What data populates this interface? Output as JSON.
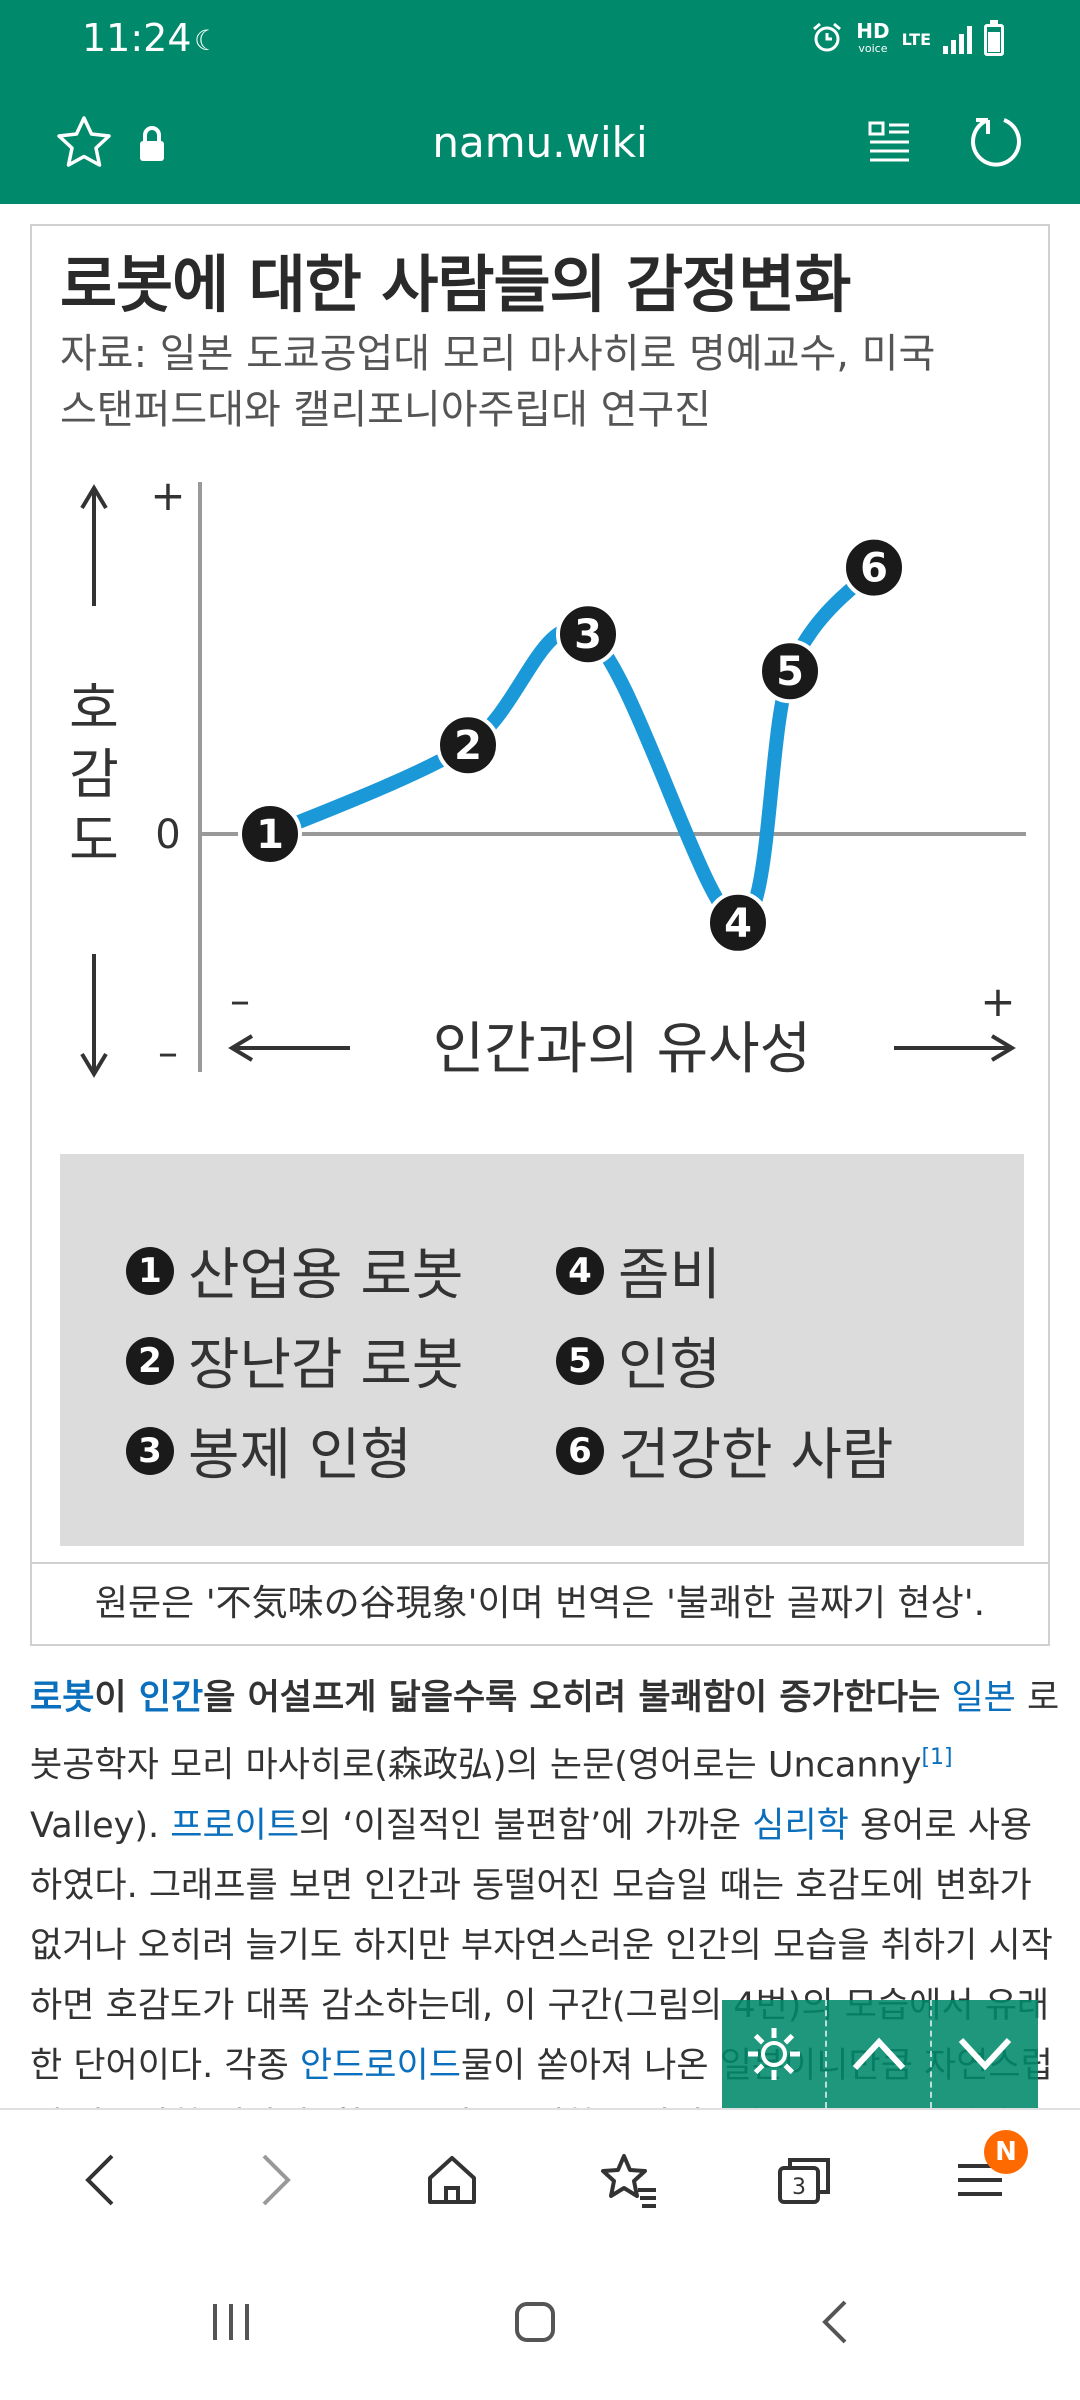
{
  "status_bar": {
    "time": "11:24",
    "hd_label": "HD",
    "voice_label": "voice",
    "network_label": "LTE"
  },
  "url_bar": {
    "url": "namu.wiki"
  },
  "figure": {
    "chart_data": {
      "type": "line",
      "title": "로봇에 대한 사람들의 감정변화",
      "subtitle": "자료: 일본 도쿄공업대 모리 마사히로 명예교수, 미국 스탠퍼드대와 캘리포니아주립대 연구진",
      "xlabel": "인간과의 유사성",
      "ylabel": "호감도",
      "y_tick_plus": "+",
      "y_tick_zero": "0",
      "y_tick_minus": "–",
      "x_tick_minus": "–",
      "x_tick_plus": "+",
      "series": [
        {
          "points": [
            {
              "label": "1",
              "x": 1,
              "y": 0
            },
            {
              "label": "2",
              "x": 2,
              "y": 1.2
            },
            {
              "label": "3",
              "x": 3,
              "y": 2.7
            },
            {
              "label": "4",
              "x": 4,
              "y": -1.2
            },
            {
              "label": "5",
              "x": 5,
              "y": 2.2
            },
            {
              "label": "6",
              "x": 6,
              "y": 3.6
            }
          ],
          "color": "#1a98d8"
        }
      ],
      "zero_line": true
    },
    "legend": [
      {
        "num": "1",
        "label": "산업용 로봇"
      },
      {
        "num": "2",
        "label": "장난감 로봇"
      },
      {
        "num": "3",
        "label": "봉제 인형"
      },
      {
        "num": "4",
        "label": "좀비"
      },
      {
        "num": "5",
        "label": "인형"
      },
      {
        "num": "6",
        "label": "건강한 사람"
      }
    ],
    "caption": "원문은 '不気味の谷現象'이며 번역은 '불쾌한 골짜기 현상'."
  },
  "article": {
    "p1_link_robot": "로봇",
    "p1_t1": "이 ",
    "p1_link_human": "인간",
    "p1_t2": "을 어설프게 닮을수록 오히려 불쾌함이 증가한다는",
    "p1_t3": " ",
    "p1_link_japan": "일본",
    "p1_t4": " 로봇공학자 모리 마사히로(森政弘)의 논문(영어로는 Uncanny",
    "p1_footnote": "[1]",
    "p1_t5": " Valley). ",
    "p1_link_freud": "프로이트",
    "p1_t6": "의 ‘이질적인 불편함’에 가까운 ",
    "p1_link_psych": "심리학",
    "p1_t7": " 용어로 사용하였다. 그래프를 보면 인간과 동떨어진 모습일 때는 호감도에 변화가 없거나 오히려 늘기도 하지만 부자연스러운 인간의 모습을 취하기 시작하면 호감도가 대폭 감소하는데, 이 구간(그림의 4번)의 모습에서 유래한 단어이다. 각종 ",
    "p1_link_android": "안드로이드",
    "p1_t8": "물이 쏟아져 나온 일본이니만큼 자연스럽게 나올만한 이야기. 참고로 이 \"불쾌한 골짜기\" 이론은 로봇 분야만이 아니라 3D 영상 분야에서도 자주 말하는 개념이기 때문에"
  },
  "bottom_nav": {
    "badge": "N",
    "tabs_count": "3"
  },
  "colors": {
    "brand": "#00896b",
    "link": "#0a6fbd",
    "curve": "#1a98d8",
    "badge": "#ff6a00"
  },
  "icons": [
    "star-icon",
    "lock-icon",
    "reader-mode-icon",
    "reload-icon",
    "settings-icon",
    "scroll-up-icon",
    "scroll-down-icon",
    "back-icon",
    "forward-icon",
    "home-icon",
    "bookmarks-icon",
    "tabs-icon",
    "menu-icon",
    "recents-icon",
    "system-home-icon",
    "system-back-icon"
  ]
}
